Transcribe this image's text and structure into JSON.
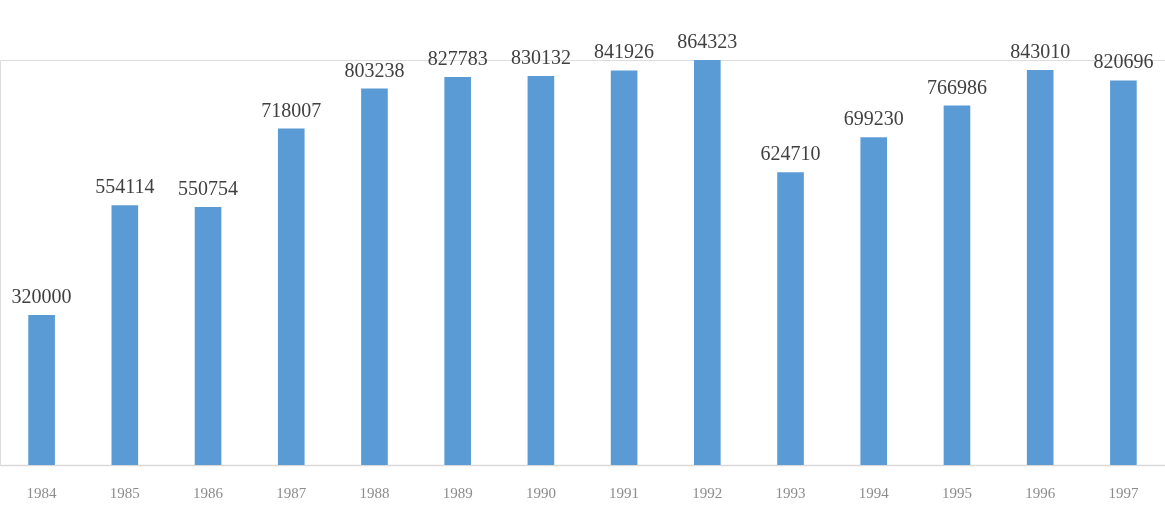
{
  "chart_data": {
    "type": "bar",
    "categories": [
      "1984",
      "1985",
      "1986",
      "1987",
      "1988",
      "1989",
      "1990",
      "1991",
      "1992",
      "1993",
      "1994",
      "1995",
      "1996",
      "1997"
    ],
    "values": [
      320000,
      554114,
      550754,
      718007,
      803238,
      827783,
      830132,
      841926,
      864323,
      624710,
      699230,
      766986,
      843010,
      820696
    ],
    "color": "#5b9bd5",
    "data_labels": true
  }
}
